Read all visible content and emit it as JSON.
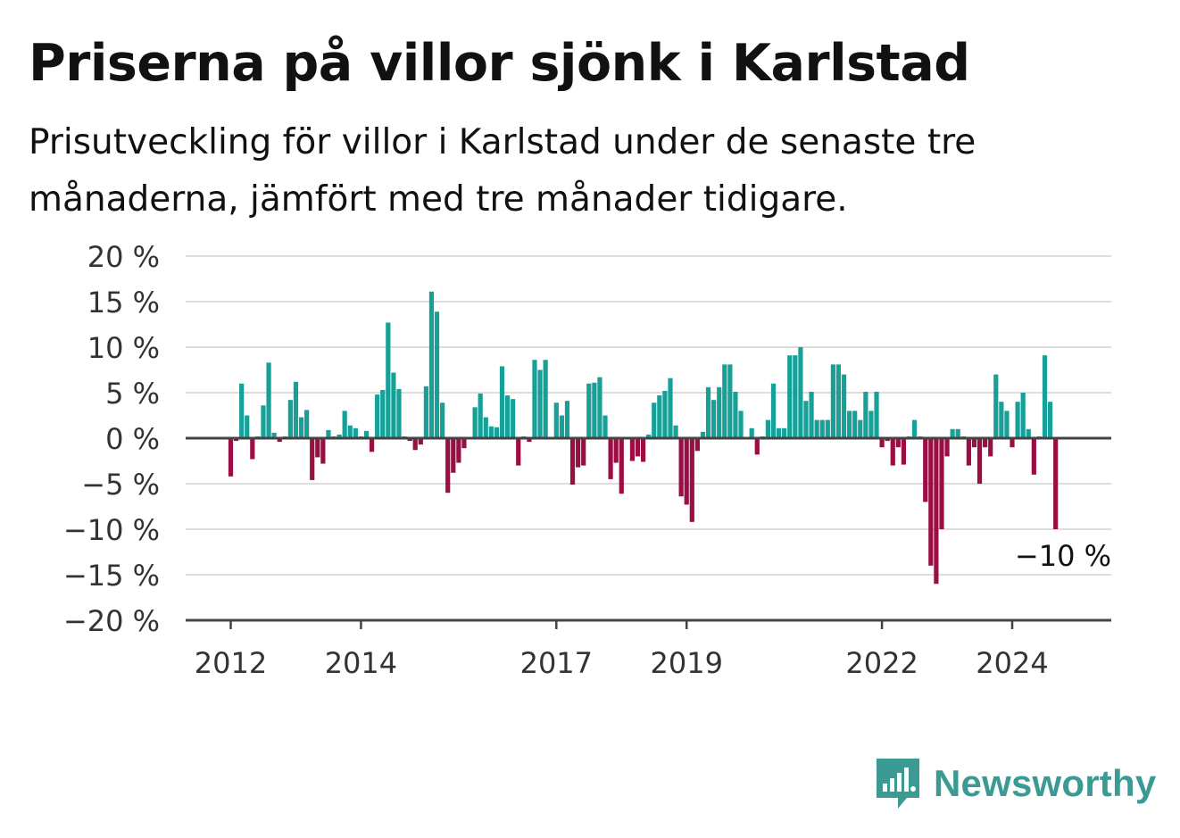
{
  "header": {
    "title": "Priserna på villor sjönk i Karlstad",
    "subtitle": "Prisutveckling för villor i Karlstad under de senaste tre månaderna, jämfört med tre månader tidigare."
  },
  "brand": {
    "name": "Newsworthy",
    "icon": "newsworthy-logo-icon"
  },
  "colors": {
    "positive": "#16a097",
    "negative": "#9b0e44",
    "grid": "#dddddd",
    "axis": "#444444"
  },
  "chart_data": {
    "type": "bar",
    "title": "Priserna på villor sjönk i Karlstad",
    "xlabel": "",
    "ylabel": "",
    "unit": "%",
    "ylim": [
      -20,
      20
    ],
    "yticks": [
      20,
      15,
      10,
      5,
      0,
      -5,
      -10,
      -15,
      -20
    ],
    "ytick_labels": [
      "20 %",
      "15 %",
      "10 %",
      "5 %",
      "0 %",
      "−5 %",
      "−10 %",
      "−15 %",
      "−20 %"
    ],
    "xticks": [
      "2012",
      "2014",
      "2017",
      "2019",
      "2022",
      "2024"
    ],
    "xtick_index": [
      0,
      24,
      60,
      84,
      120,
      144
    ],
    "start": "2012-01",
    "frequency": "monthly",
    "grid": true,
    "last_label": "−10 %",
    "values": [
      -4.2,
      -0.3,
      6.0,
      2.5,
      -2.3,
      0.2,
      3.6,
      8.3,
      0.6,
      -0.4,
      0.2,
      4.2,
      6.2,
      2.3,
      3.1,
      -4.6,
      -2.1,
      -2.8,
      0.9,
      0.2,
      0.4,
      3.0,
      1.4,
      1.1,
      0.2,
      0.8,
      -1.5,
      4.8,
      5.3,
      12.7,
      7.2,
      5.4,
      0.2,
      -0.3,
      -1.3,
      -0.7,
      5.7,
      16.1,
      13.9,
      3.9,
      -6.0,
      -3.8,
      -2.7,
      -1.1,
      0.1,
      3.4,
      4.9,
      2.3,
      1.3,
      1.2,
      7.9,
      4.7,
      4.3,
      -3.0,
      0.2,
      -0.4,
      8.6,
      7.5,
      8.6,
      0.1,
      3.9,
      2.5,
      4.1,
      -5.1,
      -3.2,
      -3.0,
      6.0,
      6.1,
      6.7,
      2.5,
      -4.5,
      -2.7,
      -6.1,
      0.1,
      -2.5,
      -2.0,
      -2.6,
      0.4,
      3.9,
      4.7,
      5.2,
      6.6,
      1.4,
      -6.4,
      -7.3,
      -9.2,
      -1.4,
      0.7,
      5.6,
      4.2,
      5.6,
      8.1,
      8.1,
      5.1,
      3.0,
      0.1,
      1.1,
      -1.8,
      0.2,
      2.0,
      6.0,
      1.1,
      1.1,
      9.1,
      9.1,
      10.0,
      4.1,
      5.1,
      2.0,
      2.0,
      2.0,
      8.1,
      8.1,
      7.0,
      3.0,
      3.0,
      2.0,
      5.1,
      3.0,
      5.1,
      -1.0,
      -0.3,
      -3.0,
      -1.0,
      -2.9,
      0.2,
      2.0,
      0.2,
      -7.0,
      -14.0,
      -16.0,
      -10.0,
      -2.0,
      1.0,
      1.0,
      0.2,
      -3.0,
      -1.0,
      -5.0,
      -1.0,
      -2.0,
      7.0,
      4.0,
      3.0,
      -1.0,
      4.0,
      5.0,
      1.0,
      -4.0,
      0.2,
      9.1,
      4.0,
      -10.0
    ]
  }
}
